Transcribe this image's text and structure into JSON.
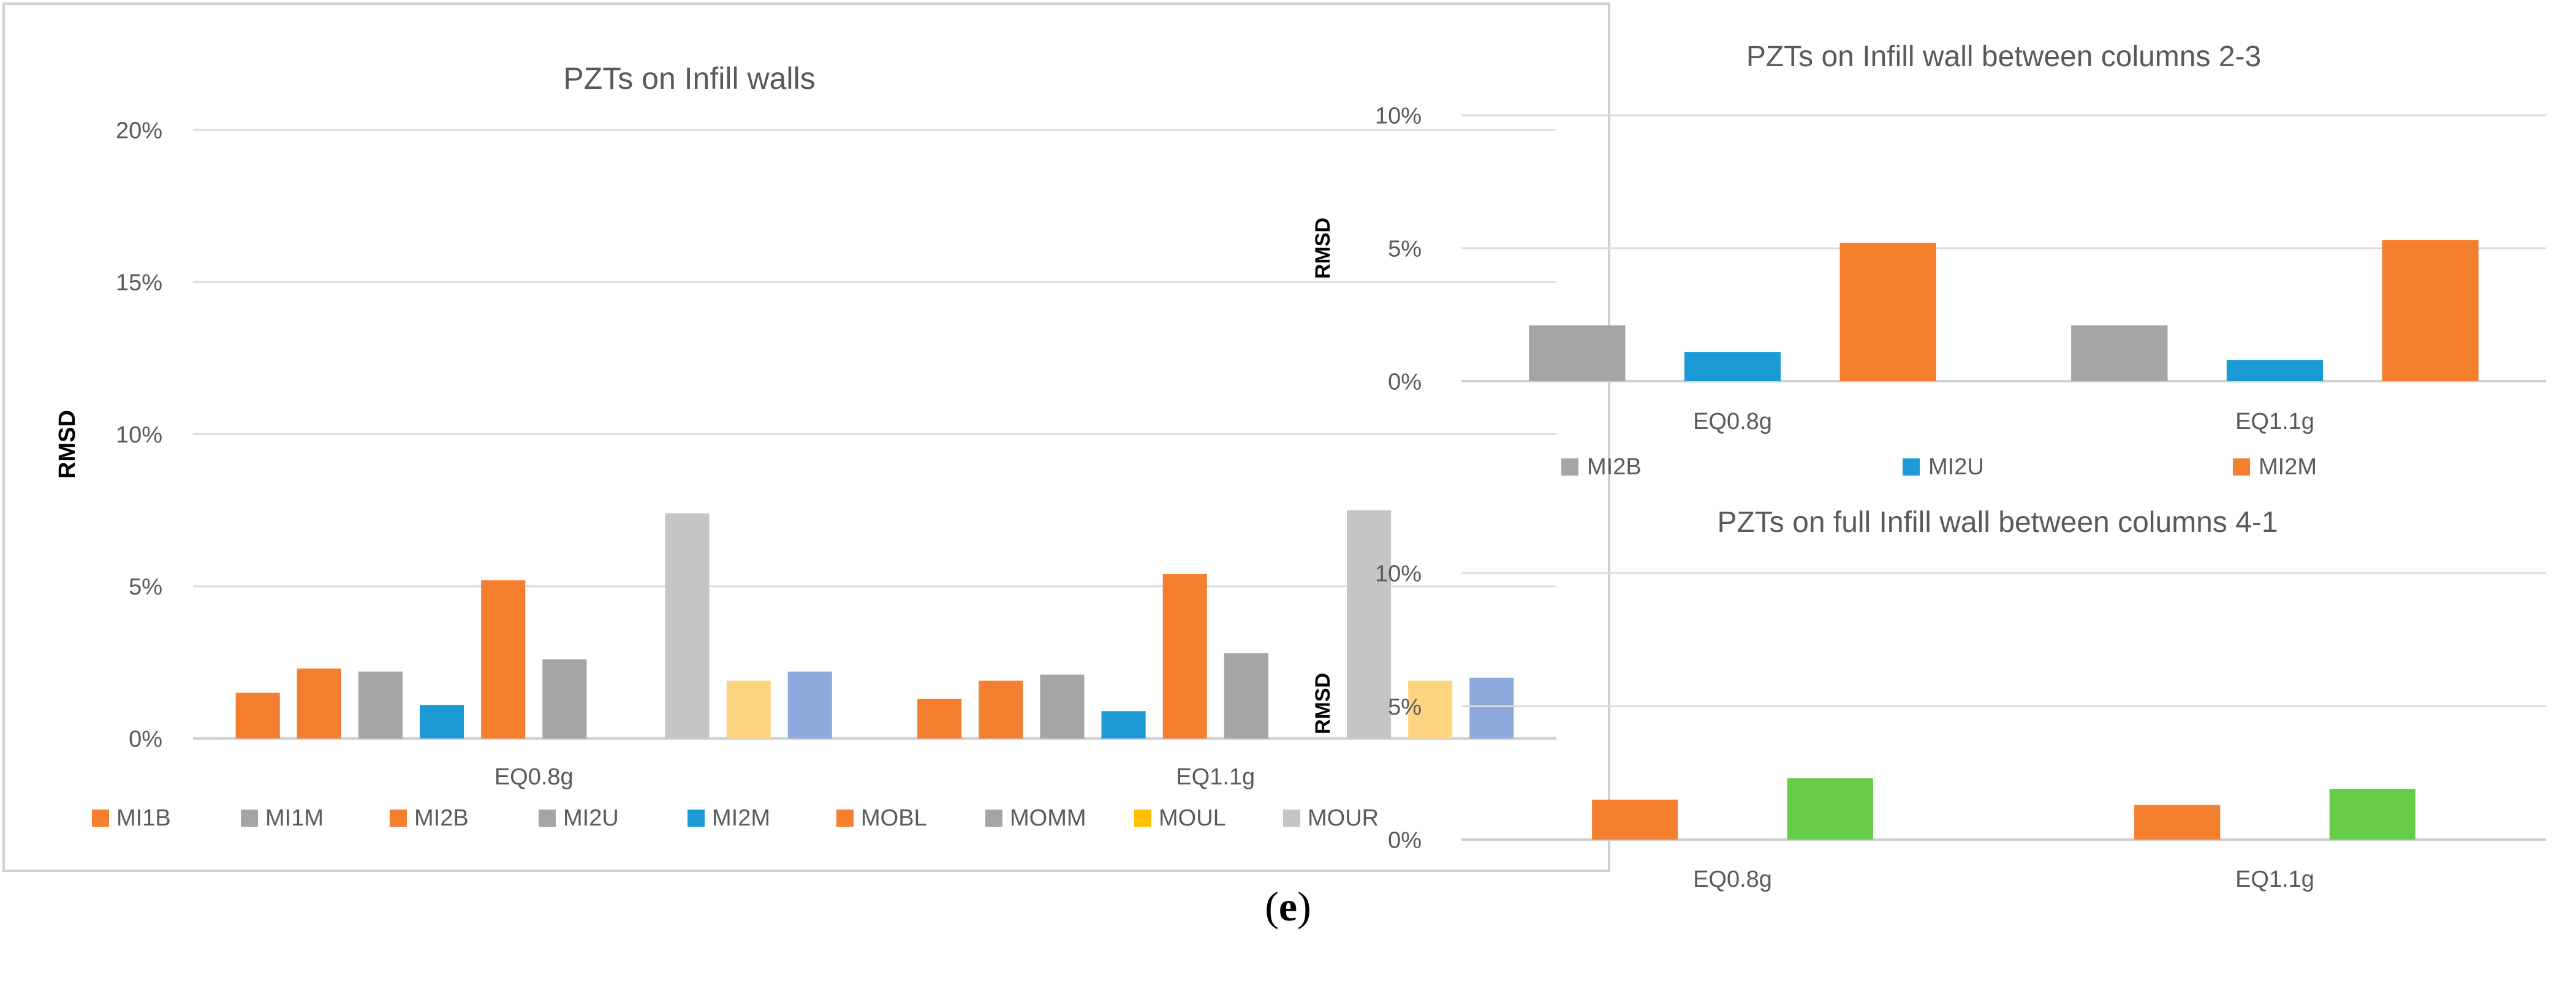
{
  "figure_label": {
    "open": "(",
    "letter": "e",
    "close": ")"
  },
  "chart_data": [
    {
      "type": "bar",
      "title": "PZTs on Infill walls",
      "ylabel": "RMSD",
      "xlabel": "",
      "ylim": [
        0,
        20
      ],
      "yticks": [
        "0%",
        "5%",
        "10%",
        "15%",
        "20%"
      ],
      "ytick_values": [
        0,
        5,
        10,
        15,
        20
      ],
      "grid": true,
      "legend": "bottom",
      "categories": [
        "EQ0.8g",
        "EQ1.1g"
      ],
      "series": [
        {
          "name": "MI1B",
          "color": "#F47F2E",
          "values": [
            1.5,
            1.3
          ]
        },
        {
          "name": "MI1M",
          "color": "#F47F2E",
          "values": [
            2.3,
            1.9
          ]
        },
        {
          "name": "MI2B",
          "color": "#A5A5A5",
          "values": [
            2.2,
            2.1
          ]
        },
        {
          "name": "MI2U",
          "color": "#1B9AD6",
          "values": [
            1.1,
            0.9
          ]
        },
        {
          "name": "MI2M",
          "color": "#F47F2E",
          "values": [
            5.2,
            5.4
          ]
        },
        {
          "name": "MOBL",
          "color": "#A5A5A5",
          "values": [
            2.6,
            2.8
          ]
        },
        {
          "name": "MOMM",
          "color": "#FFC000",
          "values": [
            0,
            0
          ]
        },
        {
          "name": "MOMM",
          "color": "#C5C5C5",
          "values": [
            7.4,
            7.5
          ]
        },
        {
          "name": "MOUL",
          "color": "#FFD480",
          "values": [
            1.9,
            1.9
          ]
        },
        {
          "name": "MOUR",
          "color": "#8EA9DB",
          "values": [
            2.2,
            2.0
          ]
        }
      ],
      "legend_entries": [
        {
          "name": "MI1B",
          "color": "#F47F2E"
        },
        {
          "name": "MI1M",
          "color": "#A5A5A5"
        },
        {
          "name": "MI2B",
          "color": "#F47F2E"
        },
        {
          "name": "MI2U",
          "color": "#A5A5A5"
        },
        {
          "name": "MI2M",
          "color": "#1B9AD6"
        },
        {
          "name": "MOBL",
          "color": "#F47F2E"
        },
        {
          "name": "MOMM",
          "color": "#A5A5A5"
        },
        {
          "name": "MOUL",
          "color": "#FFC000"
        },
        {
          "name": "MOUR",
          "color": "#C5C5C5"
        }
      ],
      "legend_trailing_colors": [
        "#FFD480",
        "#8EA9DB"
      ]
    },
    {
      "type": "bar",
      "title": "PZTs on Infill wall between columns 2-3",
      "ylabel": "RMSD",
      "xlabel": "",
      "ylim": [
        0,
        10
      ],
      "yticks": [
        "0%",
        "5%",
        "10%"
      ],
      "ytick_values": [
        0,
        5,
        10
      ],
      "grid": true,
      "legend": "bottom",
      "categories": [
        "EQ0.8g",
        "EQ1.1g"
      ],
      "series": [
        {
          "name": "MI2B",
          "color": "#A5A5A5",
          "values": [
            2.1,
            2.1
          ]
        },
        {
          "name": "MI2U",
          "color": "#1B9AD6",
          "values": [
            1.1,
            0.8
          ]
        },
        {
          "name": "MI2M",
          "color": "#F47F2E",
          "values": [
            5.2,
            5.3
          ]
        }
      ]
    },
    {
      "type": "bar",
      "title": "PZTs on full  Infill wall between columns 4-1",
      "ylabel": "RMSD",
      "xlabel": "",
      "ylim": [
        0,
        10
      ],
      "yticks": [
        "0%",
        "5%",
        "10%"
      ],
      "ytick_values": [
        0,
        5,
        10
      ],
      "grid": true,
      "categories": [
        "EQ0.8g",
        "EQ1.1g"
      ],
      "series": [
        {
          "color": "#F47F2E",
          "values": [
            1.5,
            1.3
          ]
        },
        {
          "color": "#66CC47",
          "values": [
            2.3,
            1.9
          ]
        }
      ]
    }
  ]
}
